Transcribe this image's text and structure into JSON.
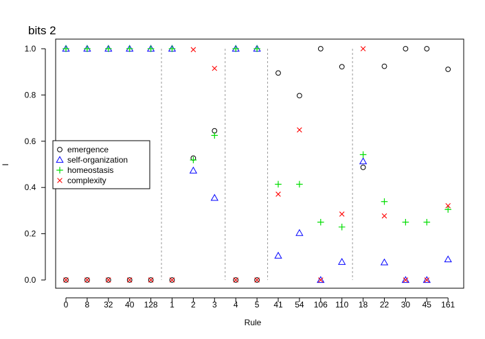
{
  "chart_data": {
    "type": "scatter",
    "title": "bits  2",
    "xlabel": "Rule",
    "ylabel": "I",
    "categories": [
      "0",
      "8",
      "32",
      "40",
      "128",
      "1",
      "2",
      "3",
      "4",
      "5",
      "41",
      "54",
      "106",
      "110",
      "18",
      "22",
      "30",
      "45",
      "161"
    ],
    "ylim": [
      0,
      1
    ],
    "yticks": [
      "0.0",
      "0.2",
      "0.4",
      "0.6",
      "0.8",
      "1.0"
    ],
    "group_separators_after": [
      "128",
      "3",
      "5",
      "110"
    ],
    "legend_position": "left",
    "series": [
      {
        "name": "emergence",
        "marker": "circle",
        "color": "#000000",
        "values": [
          0,
          0,
          0,
          0,
          0,
          0,
          0.527,
          0.645,
          0,
          0,
          0.895,
          0.797,
          1.0,
          0.922,
          0.487,
          0.924,
          1.0,
          1.0,
          0.911
        ]
      },
      {
        "name": "self-organization",
        "marker": "triangle",
        "color": "#0000ff",
        "values": [
          1,
          1,
          1,
          1,
          1,
          1,
          0.473,
          0.355,
          1,
          1,
          0.105,
          0.203,
          0.0,
          0.078,
          0.513,
          0.076,
          0.0,
          0.0,
          0.089
        ]
      },
      {
        "name": "homeostasis",
        "marker": "plus",
        "color": "#00dd00",
        "values": [
          1,
          1,
          1,
          1,
          1,
          1,
          0.519,
          0.625,
          1,
          1,
          0.414,
          0.414,
          0.25,
          0.229,
          0.542,
          0.339,
          0.25,
          0.25,
          0.305
        ]
      },
      {
        "name": "complexity",
        "marker": "cross",
        "color": "#ff0000",
        "values": [
          0,
          0,
          0,
          0,
          0,
          0,
          0.996,
          0.915,
          0,
          0,
          0.371,
          0.649,
          0.0,
          0.285,
          1.0,
          0.277,
          0.0,
          0.0,
          0.321
        ]
      }
    ]
  }
}
